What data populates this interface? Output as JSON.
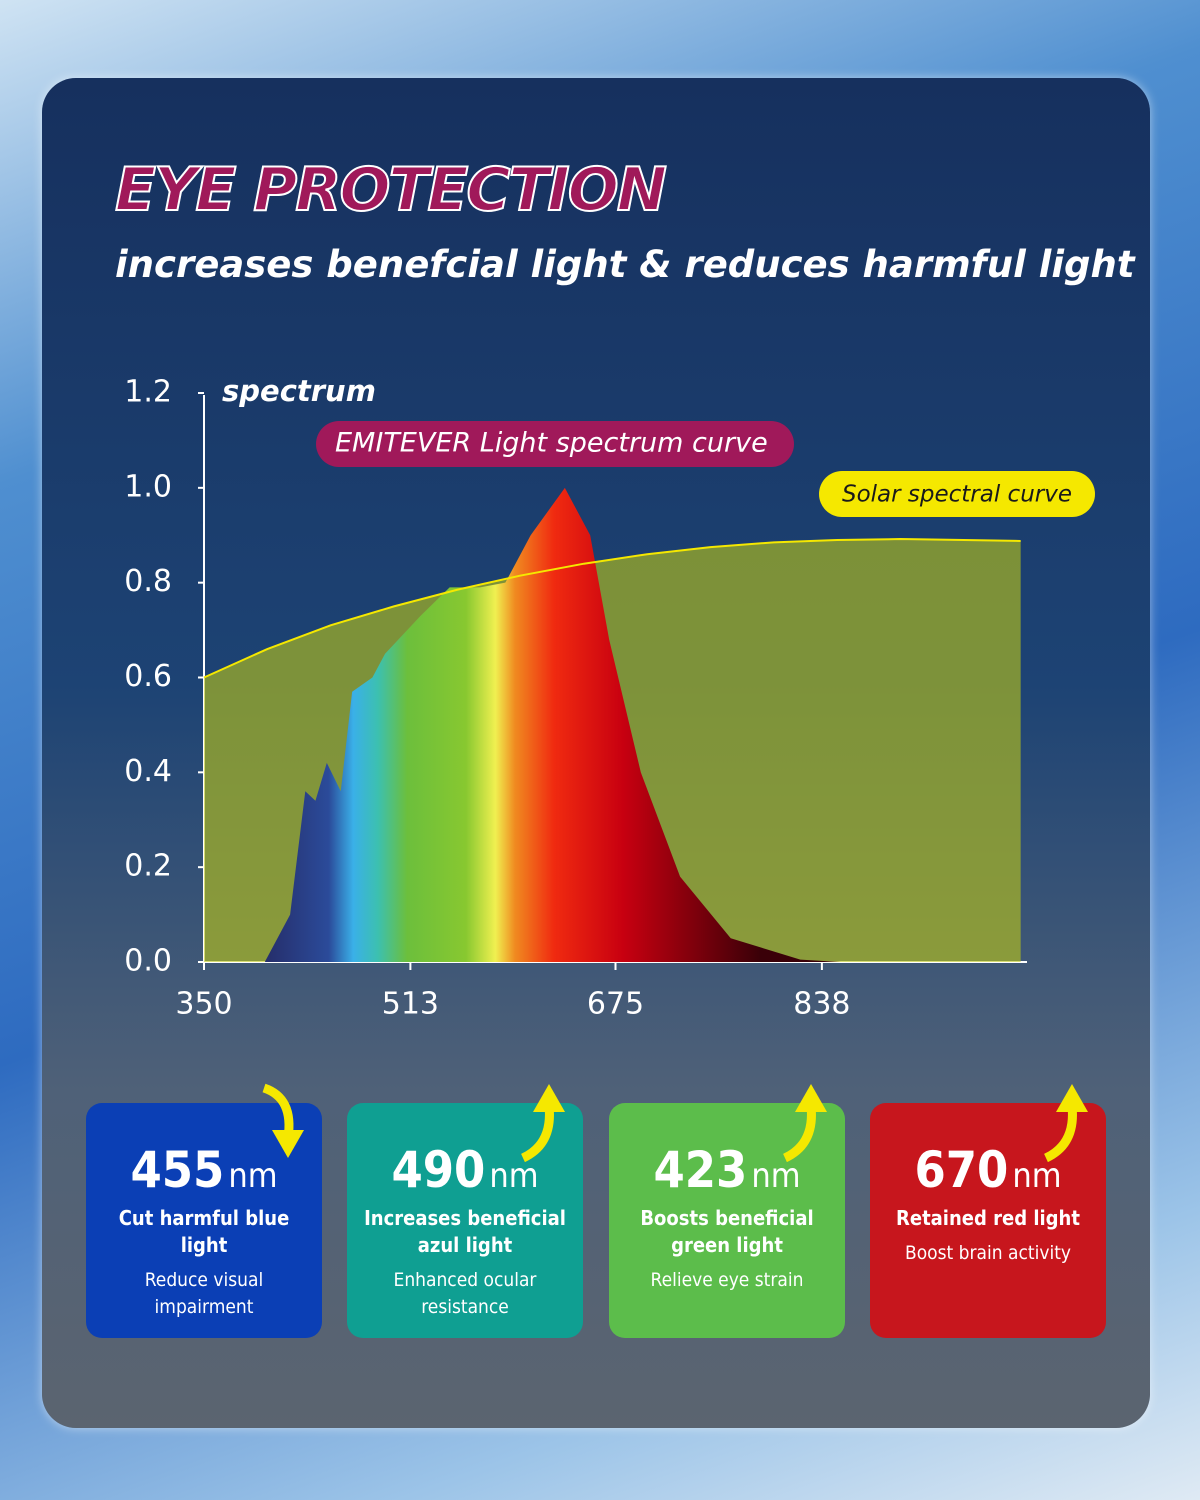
{
  "header": {
    "title": "EYE PROTECTION",
    "subtitle": "increases benefcial light & reduces harmful light"
  },
  "chart_data": {
    "type": "area",
    "y_label": "spectrum",
    "xlim": [
      350,
      1000
    ],
    "xticks": [
      350,
      513,
      675,
      838
    ],
    "ylim": [
      0,
      1.2
    ],
    "yticks": [
      {
        "value": 0,
        "label": "0.0"
      },
      0.2,
      0.4,
      0.6,
      0.8,
      {
        "value": 1,
        "label": "1.0"
      },
      1.2
    ],
    "series": [
      {
        "name": "Solar spectral curve",
        "color": "#f5e800",
        "x": [
          350,
          400,
          450,
          500,
          550,
          600,
          650,
          700,
          750,
          800,
          850,
          900,
          950,
          995
        ],
        "values": [
          0.6,
          0.66,
          0.71,
          0.75,
          0.785,
          0.815,
          0.84,
          0.86,
          0.875,
          0.885,
          0.89,
          0.892,
          0.89,
          0.888
        ]
      },
      {
        "name": "EMITEVER Light spectrum curve",
        "color": "#a0195a",
        "x": [
          398,
          418,
          430,
          438,
          447,
          458,
          467,
          483,
          493,
          521,
          544,
          568,
          588,
          608,
          635,
          655,
          670,
          695,
          726,
          766,
          821,
          853
        ],
        "values": [
          0,
          0.1,
          0.36,
          0.34,
          0.42,
          0.36,
          0.57,
          0.6,
          0.65,
          0.73,
          0.79,
          0.79,
          0.8,
          0.9,
          1.0,
          0.9,
          0.68,
          0.4,
          0.18,
          0.05,
          0.005,
          0
        ]
      }
    ]
  },
  "cards": [
    {
      "value": 455,
      "unit": "nm",
      "title": "Cut harmful blue light",
      "note": "Reduce visual impairment",
      "color": "#0b3fb5"
    },
    {
      "value": 490,
      "unit": "nm",
      "title": "Increases beneficial azul light",
      "note": "Enhanced ocular resistance",
      "color": "#0f9f92"
    },
    {
      "value": 423,
      "unit": "nm",
      "title": "Boosts beneficial green light",
      "note": "Relieve eye strain",
      "color": "#5cbd4b"
    },
    {
      "value": 670,
      "unit": "nm",
      "title": "Retained red light",
      "note": "Boost brain activity",
      "color": "#c7161d"
    }
  ]
}
